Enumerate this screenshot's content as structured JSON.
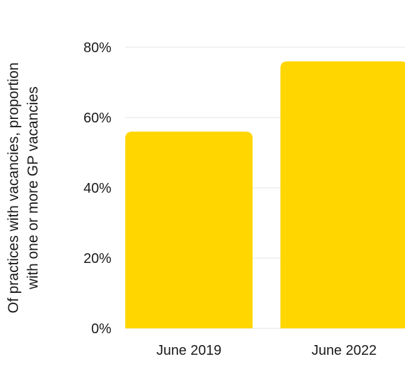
{
  "chart_data": {
    "type": "bar",
    "title": "",
    "xlabel": "",
    "ylabel_lines": [
      "Of practices with vacancies, proportion",
      "with one or more GP vacancies"
    ],
    "categories": [
      "June 2019",
      "June 2022"
    ],
    "values": [
      0.56,
      0.76
    ],
    "ylim": [
      0,
      0.8
    ],
    "yticks": [
      0,
      0.2,
      0.4,
      0.6,
      0.8
    ],
    "ytick_labels": [
      "0%",
      "20%",
      "40%",
      "60%",
      "80%"
    ],
    "grid": true,
    "bar_color": "#FFD600"
  }
}
